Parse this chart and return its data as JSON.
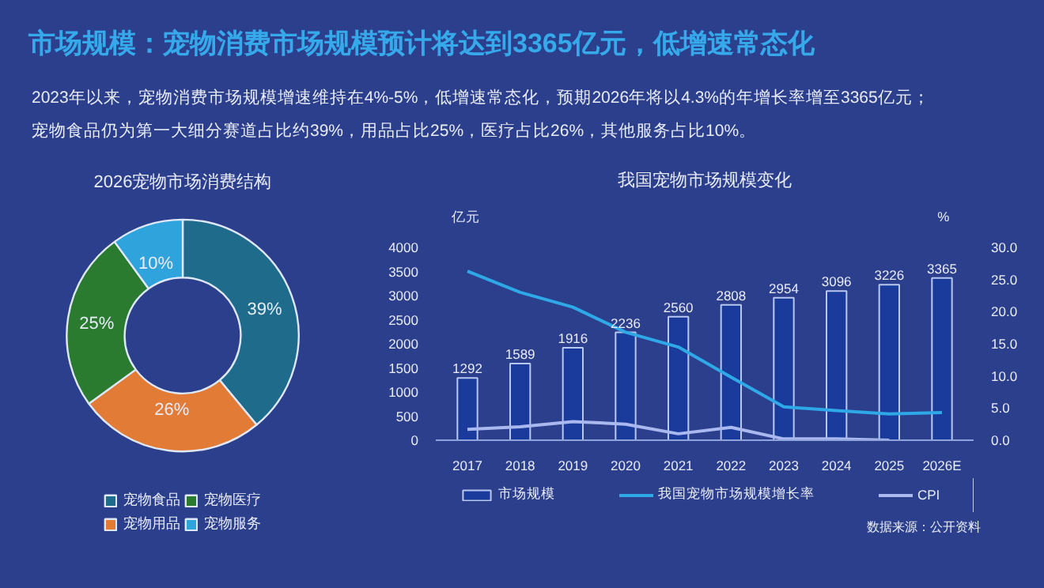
{
  "chart_data": [
    {
      "type": "other",
      "title": "市场规模：宠物消费市场规模预计将达到3365亿元，低增速常态化",
      "annotations": [
        "2023年以来，宠物消费市场规模增速维持在4%-5%，低增速常态化，预期2026年将以4.3%的年增长率增至3365亿元；",
        "宠物食品仍为第一大细分赛道占比约39%，用品占比25%，医疗占比26%，其他服务占比10%。"
      ]
    },
    {
      "type": "donut",
      "title": "2026宠物市场消费结构",
      "categories": [
        "宠物食品",
        "宠物用品",
        "宠物医疗",
        "宠物服务"
      ],
      "values": [
        39,
        26,
        25,
        10
      ],
      "value_labels": [
        "39%",
        "26%",
        "25%",
        "10%"
      ],
      "colors": [
        "#1e6b8c",
        "#e27b35",
        "#2a7a30",
        "#2fa3dc"
      ],
      "legend": "bottom"
    },
    {
      "type": "bar",
      "title": "我国宠物市场规模变化",
      "ylabel": "亿元",
      "y2label": "%",
      "categories": [
        "2017",
        "2018",
        "2019",
        "2020",
        "2021",
        "2022",
        "2023",
        "2024",
        "2025",
        "2026E"
      ],
      "series": [
        {
          "name": "市场规模",
          "type": "bar",
          "color": "#1a3a9c",
          "values": [
            1292,
            1589,
            1916,
            2236,
            2560,
            2808,
            2954,
            3096,
            3226,
            3365
          ],
          "value_labels": [
            "1292",
            "1589",
            "1916",
            "2236",
            "2560",
            "2808",
            "2954",
            "3096",
            "3226",
            "3365"
          ]
        },
        {
          "name": "我国宠物市场规模增长率",
          "type": "line",
          "axis": "y2",
          "color": "#2ea8e6",
          "values": [
            26.3,
            23.0,
            20.7,
            16.8,
            14.5,
            9.8,
            5.2,
            4.6,
            4.1,
            4.3
          ]
        },
        {
          "name": "CPI",
          "type": "line",
          "axis": "y2",
          "color": "#a9b8ee",
          "values": [
            1.7,
            2.1,
            2.9,
            2.5,
            1.0,
            2.0,
            0.2,
            0.2,
            0.0,
            null
          ]
        }
      ],
      "ylim": [
        0,
        4000
      ],
      "yticks": [
        0,
        500,
        1000,
        1500,
        2000,
        2500,
        3000,
        3500,
        4000
      ],
      "y2lim": [
        0,
        30
      ],
      "y2ticks": [
        {
          "value": 0,
          "label": "0.0"
        },
        {
          "value": 5,
          "label": "5.0"
        },
        {
          "value": 10,
          "label": "10.0"
        },
        {
          "value": 15,
          "label": "15.0"
        },
        {
          "value": 20,
          "label": "20.0"
        },
        {
          "value": 25,
          "label": "25.0"
        },
        {
          "value": 30,
          "label": "30.0"
        }
      ],
      "grid": false,
      "legend": "bottom",
      "annotations": [
        "数据来源：公开资料"
      ]
    }
  ]
}
